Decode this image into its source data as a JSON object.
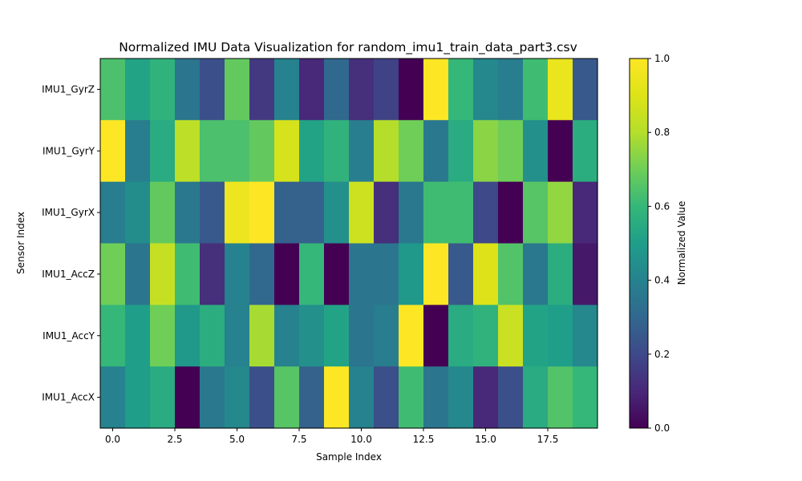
{
  "chart_data": {
    "type": "heatmap",
    "title": "Normalized IMU Data Visualization for random_imu1_train_data_part3.csv",
    "xlabel": "Sample Index",
    "ylabel": "Sensor Index",
    "colorbar_label": "Normalized Value",
    "colormap": "viridis",
    "x_range": [
      -0.5,
      19.5
    ],
    "x_ticks": [
      0.0,
      2.5,
      5.0,
      7.5,
      10.0,
      12.5,
      15.0,
      17.5
    ],
    "x_tick_labels": [
      "0.0",
      "2.5",
      "5.0",
      "7.5",
      "10.0",
      "12.5",
      "15.0",
      "17.5"
    ],
    "rows": [
      "IMU1_GyrZ",
      "IMU1_GyrY",
      "IMU1_GyrX",
      "IMU1_AccZ",
      "IMU1_AccY",
      "IMU1_AccX"
    ],
    "values": [
      [
        0.64,
        0.52,
        0.58,
        0.35,
        0.22,
        0.68,
        0.15,
        0.4,
        0.1,
        0.3,
        0.12,
        0.18,
        0.0,
        1.0,
        0.6,
        0.42,
        0.38,
        0.62,
        0.94,
        0.25
      ],
      [
        1.0,
        0.38,
        0.55,
        0.82,
        0.64,
        0.64,
        0.68,
        0.88,
        0.52,
        0.58,
        0.38,
        0.8,
        0.7,
        0.36,
        0.55,
        0.74,
        0.7,
        0.45,
        0.0,
        0.56
      ],
      [
        0.38,
        0.44,
        0.68,
        0.36,
        0.25,
        0.95,
        1.0,
        0.28,
        0.28,
        0.45,
        0.86,
        0.12,
        0.36,
        0.62,
        0.62,
        0.2,
        0.0,
        0.66,
        0.75,
        0.1
      ],
      [
        0.7,
        0.35,
        0.84,
        0.62,
        0.12,
        0.4,
        0.3,
        0.0,
        0.6,
        0.0,
        0.35,
        0.35,
        0.48,
        1.0,
        0.25,
        0.9,
        0.65,
        0.36,
        0.56,
        0.06
      ],
      [
        0.6,
        0.5,
        0.7,
        0.48,
        0.56,
        0.4,
        0.78,
        0.4,
        0.45,
        0.52,
        0.35,
        0.38,
        1.0,
        0.0,
        0.55,
        0.58,
        0.85,
        0.52,
        0.5,
        0.42
      ],
      [
        0.4,
        0.5,
        0.55,
        0.0,
        0.36,
        0.42,
        0.22,
        0.66,
        0.28,
        1.0,
        0.4,
        0.22,
        0.62,
        0.35,
        0.42,
        0.1,
        0.22,
        0.55,
        0.65,
        0.6
      ]
    ],
    "colorbar_range": [
      0.0,
      1.0
    ],
    "colorbar_ticks": [
      "0.0",
      "0.2",
      "0.4",
      "0.6",
      "0.8",
      "1.0"
    ],
    "grid": false,
    "legend": "none"
  }
}
